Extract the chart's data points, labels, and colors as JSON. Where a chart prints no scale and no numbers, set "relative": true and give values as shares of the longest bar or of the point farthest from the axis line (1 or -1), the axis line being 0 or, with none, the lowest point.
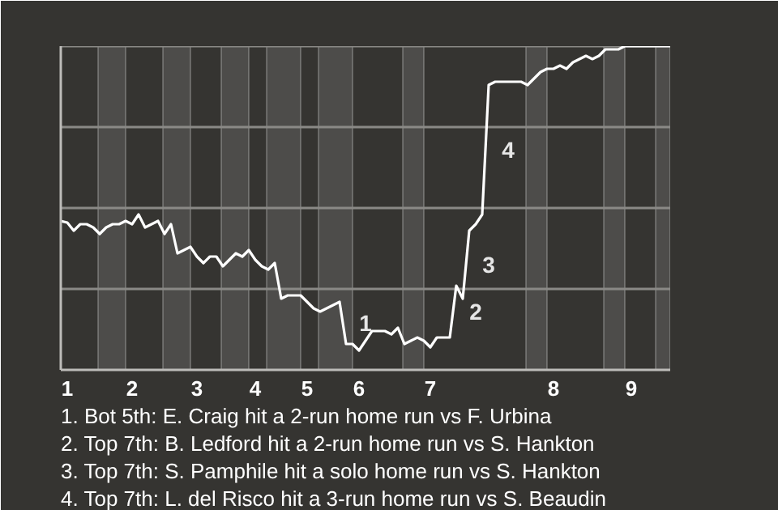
{
  "chart_data": {
    "type": "line",
    "relative": true,
    "categories": [
      null,
      "1",
      null,
      null,
      null,
      null,
      null,
      null,
      null,
      null,
      null,
      "2",
      null,
      null,
      null,
      null,
      null,
      null,
      null,
      null,
      null,
      "3",
      null,
      null,
      null,
      null,
      null,
      null,
      null,
      null,
      "4",
      null,
      null,
      null,
      null,
      null,
      null,
      null,
      "5",
      null,
      null,
      null,
      null,
      null,
      null,
      null,
      "6",
      null,
      null,
      null,
      null,
      null,
      null,
      null,
      null,
      null,
      null,
      "7",
      null,
      null,
      null,
      null,
      null,
      null,
      null,
      null,
      null,
      null,
      null,
      null,
      null,
      null,
      null,
      null,
      null,
      null,
      "8",
      null,
      null,
      null,
      null,
      null,
      null,
      null,
      null,
      null,
      null,
      null,
      "9",
      null,
      null,
      null,
      null,
      null,
      null
    ],
    "series": [
      {
        "color": "#ffffff",
        "values": [
          0.46,
          0.455,
          0.43,
          0.45,
          0.45,
          0.44,
          0.42,
          0.44,
          0.45,
          0.45,
          0.46,
          0.45,
          0.48,
          0.44,
          0.45,
          0.46,
          0.42,
          0.45,
          0.36,
          0.37,
          0.38,
          0.35,
          0.33,
          0.35,
          0.35,
          0.32,
          0.34,
          0.36,
          0.35,
          0.37,
          0.34,
          0.32,
          0.31,
          0.33,
          0.22,
          0.23,
          0.23,
          0.23,
          0.21,
          0.19,
          0.18,
          0.19,
          0.2,
          0.21,
          0.08,
          0.08,
          0.06,
          0.09,
          0.12,
          0.12,
          0.12,
          0.11,
          0.13,
          0.08,
          0.09,
          0.1,
          0.09,
          0.07,
          0.1,
          0.1,
          0.1,
          0.26,
          0.22,
          0.43,
          0.45,
          0.48,
          0.88,
          0.89,
          0.89,
          0.89,
          0.89,
          0.89,
          0.88,
          0.9,
          0.92,
          0.93,
          0.93,
          0.94,
          0.93,
          0.95,
          0.96,
          0.97,
          0.96,
          0.97,
          0.99,
          0.99,
          0.99,
          1,
          1,
          1,
          1,
          1,
          1,
          1,
          1
        ]
      }
    ],
    "line_style": "solid",
    "annotations": [
      "1",
      "2",
      "3",
      "4",
      "1. Bot 5th: E. Craig hit a 2-run home run vs F. Urbina",
      "2. Top 7th: B. Ledford hit a 2-run home run vs S. Hankton",
      "3. Top 7th: S. Pamphile hit a solo home run vs S. Hankton",
      "4. Top 7th: L. del Risco hit a 3-run home run vs S. Beaudin"
    ]
  }
}
